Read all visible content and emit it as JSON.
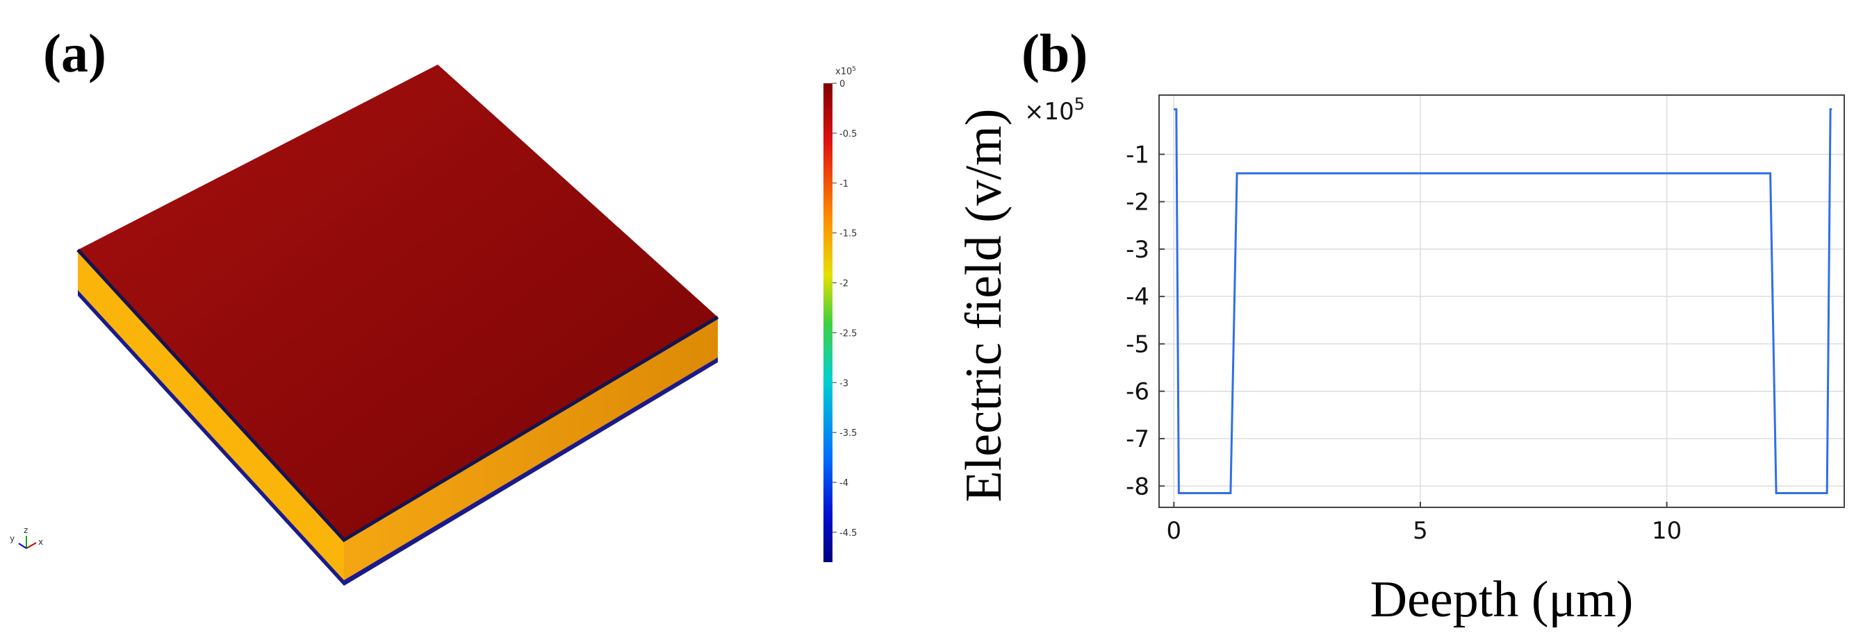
{
  "panels": {
    "a": "(a)",
    "b": "(b)"
  },
  "colorbar": {
    "multiplier": "x10",
    "exponent": "5",
    "ticks": [
      "0",
      "-0.5",
      "-1",
      "-1.5",
      "-2",
      "-2.5",
      "-3",
      "-3.5",
      "-4",
      "-4.5"
    ],
    "range": [
      -4.8,
      0
    ]
  },
  "triad": {
    "x": "x",
    "y": "y",
    "z": "z"
  },
  "chart_data": {
    "type": "line",
    "title": "",
    "xlabel": "Deepth (μm)",
    "ylabel": "Electric field  (v/m)",
    "y_multiplier": "×10",
    "y_multiplier_exp": "5",
    "xlim": [
      -0.3,
      13.6
    ],
    "ylim": [
      -8.45,
      0.25
    ],
    "xticks": [
      0,
      5,
      10
    ],
    "yticks": [
      -1,
      -2,
      -3,
      -4,
      -5,
      -6,
      -7,
      -8
    ],
    "grid": true,
    "series": [
      {
        "color": "#2e6fe8",
        "x": [
          0.0,
          0.05,
          0.1,
          1.15,
          1.28,
          12.1,
          12.22,
          13.25,
          13.32,
          13.35
        ],
        "y": [
          -0.05,
          -0.05,
          -8.15,
          -8.15,
          -1.4,
          -1.4,
          -8.15,
          -8.15,
          -0.05,
          -0.05
        ]
      }
    ]
  }
}
